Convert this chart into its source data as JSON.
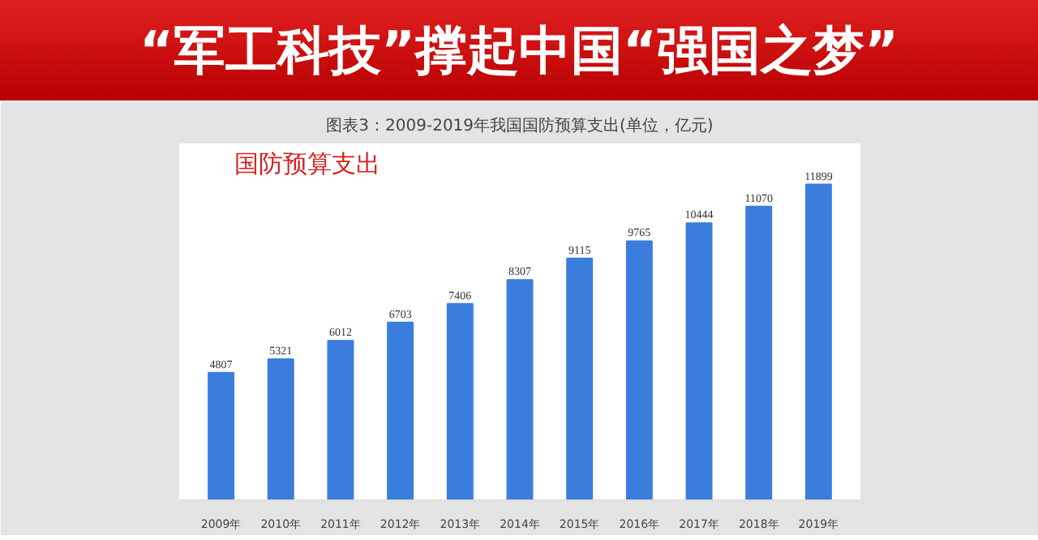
{
  "chart_data": {
    "type": "bar",
    "title": "“军工科技”撑起中国“强国之梦”",
    "subtitle": "图表3：2009-2019年我国国防预算支出(单位，亿元)",
    "annotations": [
      "国防预算支出"
    ],
    "categories": [
      "2009年",
      "2010年",
      "2011年",
      "2012年",
      "2013年",
      "2014年",
      "2015年",
      "2016年",
      "2017年",
      "2018年",
      "2019年"
    ],
    "values": [
      4807,
      5321,
      6012,
      6703,
      7406,
      8307,
      9115,
      9765,
      10444,
      11070,
      11899
    ],
    "color": "#3b7ddd",
    "data_labels": true
  }
}
